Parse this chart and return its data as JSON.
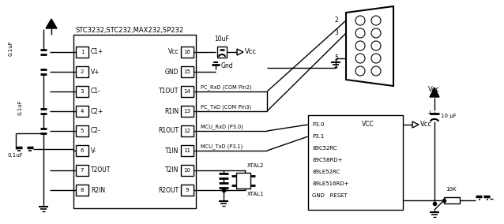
{
  "bg_color": "#ffffff",
  "line_color": "#000000",
  "chip_label": "STC3232,STC232,MAX232,SP232",
  "left_pin_names": [
    "C1+",
    "V+",
    "C1-",
    "C2+",
    "C2-",
    "V-",
    "T2OUT",
    "R2IN"
  ],
  "left_pin_nums": [
    1,
    2,
    3,
    4,
    5,
    6,
    7,
    8
  ],
  "right_pin_names": [
    "Vcc",
    "GND",
    "T1OUT",
    "R1IN",
    "R1OUT",
    "T1IN",
    "T2IN",
    "R2OUT"
  ],
  "right_pin_nums": [
    16,
    15,
    14,
    13,
    12,
    11,
    10,
    9
  ],
  "mcu_lines": [
    "P3.0",
    "P3.1",
    "89C52RC",
    "89C58RD+",
    "89LE52RC",
    "89LE516RD+",
    "GND   RESET"
  ],
  "sig_labels": [
    "PC_RxD (COM Pin2)",
    "PC_TxD (COM Pin3)",
    "MCU_RxD (P3.0)",
    "MCU_TxD (P3.1)"
  ],
  "cap_labels_left": [
    "0.1uF",
    "0.1uF",
    "0.1uF"
  ],
  "cap_label_vcc": "10uF",
  "mcu_vcc_label": "VCC",
  "vcc_label": "Vcc",
  "gnd_label": "Gnd",
  "xtal2_label": "XTAL2",
  "xtal1_label": "XTAL1",
  "uf10_label": "10 μF",
  "res_label": "10K",
  "db9_pin_labels": [
    "2",
    "3",
    "5"
  ]
}
